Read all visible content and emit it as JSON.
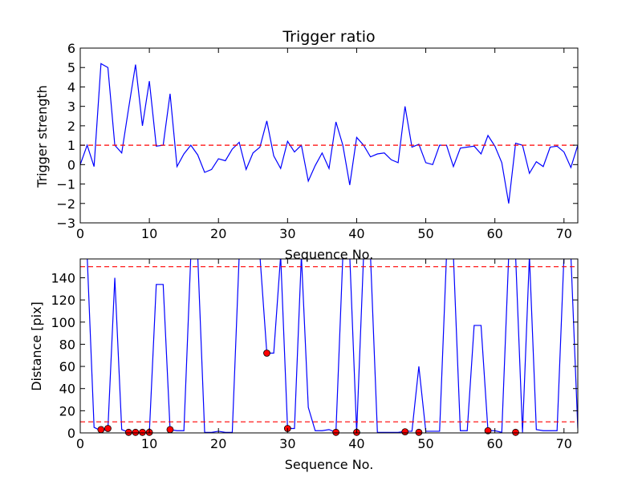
{
  "chart_data": [
    {
      "type": "line",
      "title": "Trigger ratio",
      "xlabel": "Sequence No.",
      "ylabel": "Trigger strength",
      "xlim": [
        0,
        72
      ],
      "ylim": [
        -3,
        6
      ],
      "xticks": [
        0,
        10,
        20,
        30,
        40,
        50,
        60,
        70
      ],
      "yticks": [
        -3,
        -2,
        -1,
        0,
        1,
        2,
        3,
        4,
        5,
        6
      ],
      "grid": false,
      "series": [
        {
          "color": "#0000ff",
          "x": [
            0,
            1,
            2,
            3,
            4,
            5,
            6,
            7,
            8,
            9,
            10,
            11,
            12,
            13,
            14,
            15,
            16,
            17,
            18,
            19,
            20,
            21,
            22,
            23,
            24,
            25,
            26,
            27,
            28,
            29,
            30,
            31,
            32,
            33,
            34,
            35,
            36,
            37,
            38,
            39,
            40,
            41,
            42,
            43,
            44,
            45,
            46,
            47,
            48,
            49,
            50,
            51,
            52,
            53,
            54,
            55,
            56,
            57,
            58,
            59,
            60,
            61,
            62,
            63,
            64,
            65,
            66,
            67,
            68,
            69,
            70,
            71,
            72
          ],
          "y": [
            0.0,
            1.0,
            -0.1,
            5.2,
            5.0,
            1.0,
            0.6,
            2.9,
            5.15,
            2.0,
            4.3,
            0.95,
            1.0,
            3.65,
            -0.1,
            0.55,
            1.0,
            0.5,
            -0.4,
            -0.25,
            0.3,
            0.2,
            0.8,
            1.15,
            -0.25,
            0.6,
            0.9,
            2.25,
            0.45,
            -0.2,
            1.2,
            0.65,
            1.0,
            -0.85,
            -0.05,
            0.6,
            -0.2,
            2.2,
            1.0,
            -1.05,
            1.4,
            1.0,
            0.4,
            0.55,
            0.6,
            0.25,
            0.1,
            3.0,
            0.9,
            1.05,
            0.1,
            0.0,
            1.0,
            1.0,
            -0.1,
            0.85,
            0.9,
            0.95,
            0.55,
            1.5,
            0.95,
            0.1,
            -2.0,
            1.1,
            1.0,
            -0.45,
            0.15,
            -0.1,
            0.9,
            0.95,
            0.65,
            -0.15,
            1.0
          ]
        }
      ],
      "hlines": [
        {
          "y": 1,
          "color": "#ff0000",
          "style": "dashed"
        }
      ]
    },
    {
      "type": "line",
      "title": "",
      "xlabel": "Sequence No.",
      "ylabel": "Distance [pix]",
      "xlim": [
        0,
        72
      ],
      "ylim": [
        0,
        157
      ],
      "xticks": [
        0,
        10,
        20,
        30,
        40,
        50,
        60,
        70
      ],
      "yticks": [
        0,
        20,
        40,
        60,
        80,
        100,
        120,
        140
      ],
      "grid": false,
      "series": [
        {
          "color": "#0000ff",
          "x": [
            1,
            2,
            3,
            4,
            5,
            6,
            7,
            8,
            9,
            10,
            11,
            12,
            13,
            14,
            15,
            16,
            17,
            18,
            19,
            20,
            21,
            22,
            23,
            24,
            25,
            26,
            27,
            28,
            29,
            30,
            31,
            32,
            33,
            34,
            35,
            36,
            37,
            38,
            39,
            40,
            41,
            42,
            43,
            44,
            45,
            46,
            47,
            48,
            49,
            50,
            51,
            52,
            53,
            54,
            55,
            56,
            57,
            58,
            59,
            60,
            61,
            62,
            63,
            64,
            65,
            66,
            67,
            68,
            69,
            70,
            71,
            72
          ],
          "y": [
            160,
            5,
            2,
            3,
            140,
            3,
            0.5,
            0.5,
            0.5,
            0.5,
            134,
            134,
            3,
            2,
            2,
            160,
            160,
            0.5,
            0.5,
            1.5,
            0.5,
            0.5,
            160,
            160,
            160,
            160,
            72,
            72,
            160,
            4,
            4,
            160,
            23,
            2,
            2,
            3,
            0.5,
            160,
            160,
            0.5,
            160,
            160,
            0.5,
            0.5,
            0.5,
            0.5,
            1.5,
            1.5,
            60,
            1.5,
            1.5,
            1.5,
            160,
            160,
            2,
            2,
            97,
            97,
            2,
            2,
            0.5,
            160,
            160,
            0.5,
            160,
            3,
            2,
            2,
            2,
            160,
            160,
            4
          ]
        }
      ],
      "markers": {
        "color": "#ff0000",
        "x": [
          3,
          4,
          7,
          8,
          9,
          10,
          13,
          27,
          30,
          37,
          40,
          47,
          49,
          59,
          63
        ],
        "y": [
          3,
          4,
          0.5,
          0.5,
          0.5,
          0.5,
          3,
          72,
          4,
          0.5,
          0.5,
          1,
          0.5,
          2,
          0.5
        ]
      },
      "hlines": [
        {
          "y": 150,
          "color": "#ff0000",
          "style": "dashed"
        },
        {
          "y": 10,
          "color": "#ff0000",
          "style": "dashed"
        }
      ]
    }
  ]
}
